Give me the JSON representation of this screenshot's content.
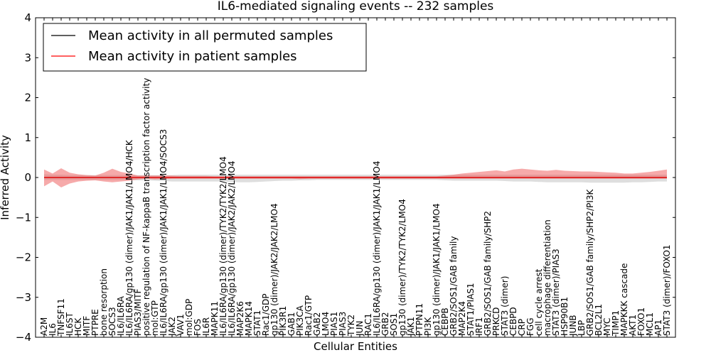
{
  "chart_data": {
    "type": "line",
    "title": "IL6-mediated signaling events -- 232 samples",
    "xlabel": "Cellular Entities",
    "ylabel": "Inferred Activity",
    "ylim": [
      -4,
      4
    ],
    "yticks": [
      -4,
      -3,
      -2,
      -1,
      0,
      1,
      2,
      3,
      4
    ],
    "ytick_labels": [
      "−4",
      "−3",
      "−2",
      "−1",
      "0",
      "1",
      "2",
      "3",
      "4"
    ],
    "grid": false,
    "legend_position": "top-left",
    "categories": [
      "A2M",
      "IL6",
      "TNFSF11",
      "IL6ST",
      "HCK",
      "MITF",
      "PTPRE",
      "bone resorption",
      "SOCS3",
      "IL6/IL6RA",
      "IL6/IL6RA/gp130 (dimer)/JAK1/JAK1/LMO4/HCK",
      "PIAS3/MITF",
      "positive regulation of NF-kappaB transcription factor activity",
      "mol:GTP",
      "IL6/IL6RA/gp130 (dimer)/JAK1/JAK1/LMO4/SOCS3",
      "JAK2",
      "VAV1",
      "mol:GDP",
      "FOS",
      "IL6R",
      "MAPK11",
      "IL6/IL6RA/gp130 (dimer)/TYK2/TYK2/LMO4",
      "IL6/IL6RA/gp130 (dimer)/JAK2/JAK2/LMO4",
      "MAP2K6",
      "MAPK14",
      "STAT1",
      "Rac1/GDP",
      "gp130 (dimer)/JAK2/JAK2/LMO4",
      "PIK3R1",
      "GAB1",
      "PIK3CA",
      "Rac1/GTP",
      "GAB2",
      "LMO4",
      "PIAS1",
      "PIAS3",
      "TYK2",
      "JUN",
      "RAC1",
      "IL6/IL6RA/gp130 (dimer)/JAK1/JAK1/LMO4",
      "GRB2",
      "SOS1",
      "gp130 (dimer)/TYK2/TYK2/LMO4",
      "JAK1",
      "PTPN11",
      "PI3K",
      "gp130 (dimer)/JAK1/JAK1/LMO4",
      "CEBPB",
      "GRB2/SOS1/GAB family",
      "MAP2K4",
      "STAT1/PIAS1",
      "IRF1",
      "GRB2/SOS1/GAB family/SHP2",
      "PRKCD",
      "STAT3 (dimer)",
      "CEBPD",
      "CRP",
      "FGG",
      "cell cycle arrest",
      "macrophage differentiation",
      "STAT3 (dimer)/PIAS3",
      "HSP90B1",
      "JUNB",
      "LBP",
      "GRB2/SOS1/GAB family/SHP2/PI3K",
      "BCL2L1",
      "MYC",
      "TIMP1",
      "MAPKKK cascade",
      "AKT1",
      "FOXO1",
      "MCL1",
      "AP1",
      "STAT3 (dimer)/FOXO1"
    ],
    "series": [
      {
        "name": "Mean activity in all permuted samples",
        "color": "#000000",
        "values": [
          0.0,
          0.0,
          0.0,
          0.0,
          0.0,
          0.0,
          0.0,
          0.0,
          0.0,
          0.0,
          0.0,
          0.0,
          0.0,
          0.0,
          0.0,
          0.0,
          0.0,
          0.0,
          0.0,
          0.0,
          0.0,
          0.0,
          0.0,
          0.0,
          0.0,
          0.0,
          0.0,
          0.0,
          0.0,
          0.0,
          0.0,
          0.0,
          0.0,
          0.0,
          0.0,
          0.0,
          0.0,
          0.0,
          0.0,
          0.0,
          0.0,
          0.0,
          0.0,
          0.0,
          0.0,
          0.0,
          0.0,
          0.0,
          0.0,
          0.0,
          0.0,
          0.0,
          0.0,
          0.0,
          0.0,
          0.0,
          0.0,
          0.0,
          0.0,
          0.0,
          0.0,
          0.0,
          0.0,
          0.0,
          0.0,
          0.0,
          0.0,
          0.0,
          0.0,
          0.0,
          0.0,
          0.0,
          0.0,
          0.0
        ],
        "band_upper": [
          0.08,
          0.07,
          0.07,
          0.06,
          0.06,
          0.06,
          0.06,
          0.06,
          0.06,
          0.06,
          0.06,
          0.06,
          0.06,
          0.06,
          0.06,
          0.06,
          0.07,
          0.07,
          0.07,
          0.07,
          0.07,
          0.07,
          0.07,
          0.07,
          0.07,
          0.07,
          0.07,
          0.07,
          0.07,
          0.07,
          0.07,
          0.07,
          0.07,
          0.07,
          0.07,
          0.07,
          0.07,
          0.07,
          0.07,
          0.07,
          0.07,
          0.07,
          0.07,
          0.07,
          0.07,
          0.07,
          0.07,
          0.07,
          0.07,
          0.07,
          0.07,
          0.07,
          0.07,
          0.07,
          0.07,
          0.07,
          0.07,
          0.07,
          0.07,
          0.07,
          0.07,
          0.07,
          0.07,
          0.07,
          0.07,
          0.07,
          0.07,
          0.07,
          0.07,
          0.07,
          0.07,
          0.07,
          0.07,
          0.07
        ],
        "band_lower": [
          -0.06,
          -0.06,
          -0.06,
          -0.06,
          -0.06,
          -0.06,
          -0.06,
          -0.06,
          -0.06,
          -0.06,
          -0.06,
          -0.07,
          -0.07,
          -0.08,
          -0.09,
          -0.1,
          -0.1,
          -0.1,
          -0.1,
          -0.1,
          -0.1,
          -0.1,
          -0.11,
          -0.12,
          -0.12,
          -0.11,
          -0.1,
          -0.09,
          -0.08,
          -0.08,
          -0.07,
          -0.07,
          -0.06,
          -0.06,
          -0.06,
          -0.06,
          -0.06,
          -0.06,
          -0.06,
          -0.06,
          -0.06,
          -0.06,
          -0.06,
          -0.06,
          -0.06,
          -0.06,
          -0.06,
          -0.07,
          -0.08,
          -0.08,
          -0.08,
          -0.08,
          -0.08,
          -0.08,
          -0.09,
          -0.1,
          -0.1,
          -0.1,
          -0.11,
          -0.12,
          -0.12,
          -0.12,
          -0.12,
          -0.12,
          -0.13,
          -0.13,
          -0.13,
          -0.13,
          -0.13,
          -0.12,
          -0.12,
          -0.11,
          -0.1,
          -0.1
        ]
      },
      {
        "name": "Mean activity in patient samples",
        "color": "#ff0000",
        "values": [
          0.0,
          0.0,
          0.0,
          0.0,
          0.0,
          0.0,
          0.0,
          0.0,
          0.0,
          0.0,
          0.0,
          0.0,
          0.0,
          0.0,
          0.0,
          0.0,
          0.0,
          0.0,
          0.0,
          0.0,
          0.0,
          0.0,
          0.0,
          0.0,
          0.0,
          0.0,
          0.0,
          0.0,
          0.0,
          0.0,
          0.0,
          0.0,
          0.0,
          0.0,
          0.0,
          0.0,
          0.0,
          0.0,
          0.0,
          0.0,
          0.0,
          0.0,
          0.0,
          0.0,
          0.0,
          0.0,
          0.0,
          0.0,
          0.0,
          0.0,
          0.0,
          0.0,
          0.0,
          0.0,
          0.0,
          0.0,
          0.0,
          0.0,
          0.0,
          0.0,
          0.0,
          0.0,
          0.0,
          0.0,
          0.0,
          0.0,
          0.0,
          0.0,
          0.0,
          0.0,
          0.0,
          0.0,
          0.0,
          0.0
        ],
        "band_upper": [
          0.2,
          0.1,
          0.23,
          0.12,
          0.08,
          0.06,
          0.05,
          0.12,
          0.22,
          0.14,
          0.1,
          0.05,
          0.05,
          0.05,
          0.05,
          0.05,
          0.04,
          0.04,
          0.04,
          0.04,
          0.03,
          0.03,
          0.03,
          0.03,
          0.03,
          0.03,
          0.03,
          0.03,
          0.03,
          0.03,
          0.03,
          0.03,
          0.03,
          0.03,
          0.03,
          0.03,
          0.03,
          0.03,
          0.03,
          0.03,
          0.03,
          0.03,
          0.03,
          0.03,
          0.03,
          0.03,
          0.03,
          0.05,
          0.07,
          0.1,
          0.12,
          0.14,
          0.16,
          0.18,
          0.15,
          0.2,
          0.22,
          0.2,
          0.18,
          0.17,
          0.19,
          0.17,
          0.16,
          0.15,
          0.15,
          0.14,
          0.13,
          0.12,
          0.1,
          0.1,
          0.12,
          0.14,
          0.17,
          0.2
        ],
        "band_lower": [
          -0.22,
          -0.1,
          -0.25,
          -0.15,
          -0.1,
          -0.08,
          -0.07,
          -0.1,
          -0.12,
          -0.1,
          -0.08,
          -0.05,
          -0.03,
          -0.05,
          -0.04,
          -0.03,
          -0.03,
          -0.03,
          -0.03,
          -0.03,
          -0.03,
          -0.03,
          -0.03,
          -0.03,
          -0.03,
          -0.03,
          -0.03,
          -0.03,
          -0.03,
          -0.03,
          -0.04,
          -0.03,
          -0.03,
          -0.03,
          -0.03,
          -0.03,
          -0.03,
          -0.03,
          -0.03,
          -0.03,
          -0.03,
          -0.03,
          -0.03,
          -0.03,
          -0.03,
          -0.03,
          -0.03,
          -0.03,
          -0.03,
          -0.03,
          -0.03,
          -0.03,
          -0.03,
          -0.03,
          -0.03,
          -0.03,
          -0.03,
          -0.03,
          -0.03,
          -0.03,
          -0.03,
          -0.03,
          -0.03,
          -0.03,
          -0.03,
          -0.03,
          -0.03,
          -0.03,
          -0.03,
          -0.03,
          -0.03,
          -0.03,
          -0.03,
          -0.03
        ]
      }
    ]
  }
}
